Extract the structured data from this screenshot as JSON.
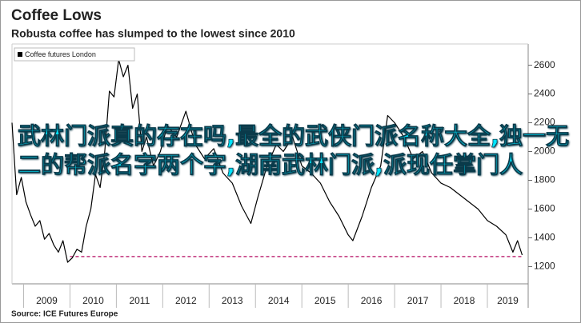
{
  "chart_data": {
    "type": "line",
    "title": "Coffee Lows",
    "subtitle": "Robusta coffee has slumped to the lowest since 2010",
    "source": "Source: ICE Futures Europe",
    "overlay_text": "武林门派真的存在吗,最全的武侠门派名称大全,独一无二的帮派名字两个字,湖南武林门派,派现任掌门人",
    "legend": "upper left",
    "grid": false,
    "x": [
      2008.75,
      2008.85,
      2008.95,
      2009.05,
      2009.15,
      2009.25,
      2009.35,
      2009.45,
      2009.55,
      2009.65,
      2009.75,
      2009.85,
      2009.95,
      2010.05,
      2010.15,
      2010.25,
      2010.35,
      2010.45,
      2010.55,
      2010.65,
      2010.75,
      2010.85,
      2010.95,
      2011.05,
      2011.15,
      2011.25,
      2011.35,
      2011.45,
      2011.55,
      2011.65,
      2011.8,
      2011.95,
      2012.1,
      2012.3,
      2012.5,
      2012.7,
      2012.9,
      2013.1,
      2013.3,
      2013.5,
      2013.7,
      2013.9,
      2014.05,
      2014.25,
      2014.45,
      2014.6,
      2014.8,
      2015.0,
      2015.2,
      2015.4,
      2015.6,
      2015.8,
      2016.0,
      2016.1,
      2016.3,
      2016.5,
      2016.7,
      2016.85,
      2017.0,
      2017.2,
      2017.4,
      2017.6,
      2017.8,
      2018.0,
      2018.2,
      2018.4,
      2018.6,
      2018.8,
      2019.0,
      2019.2,
      2019.4,
      2019.55,
      2019.65,
      2019.75
    ],
    "series": [
      {
        "name": "Coffee futures London",
        "color": "#000000",
        "values": [
          2200,
          1700,
          1820,
          1650,
          1560,
          1480,
          1520,
          1390,
          1430,
          1350,
          1300,
          1380,
          1230,
          1260,
          1320,
          1300,
          1480,
          1600,
          1840,
          1750,
          2000,
          2420,
          2380,
          2640,
          2520,
          2600,
          2300,
          2400,
          2000,
          2100,
          1900,
          2000,
          2180,
          2100,
          2280,
          2050,
          1950,
          2020,
          1850,
          1780,
          1620,
          1500,
          1680,
          1900,
          2050,
          2000,
          2100,
          1900,
          1850,
          1780,
          1650,
          1550,
          1420,
          1380,
          1550,
          1750,
          1900,
          2250,
          2200,
          2100,
          1950,
          2000,
          1850,
          1780,
          1750,
          1700,
          1650,
          1600,
          1520,
          1480,
          1420,
          1300,
          1380,
          1280
        ]
      }
    ],
    "reference_line": {
      "value": 1270,
      "from": 2010.0,
      "color": "#c0307a"
    },
    "xlim": [
      2008.75,
      2019.88
    ],
    "xticks": [
      2009,
      2010,
      2011,
      2012,
      2013,
      2014,
      2015,
      2016,
      2017,
      2018,
      2019
    ],
    "ylim": [
      1080,
      2720
    ],
    "yticks": [
      1200,
      1400,
      1600,
      1800,
      2000,
      2200,
      2400,
      2600
    ]
  }
}
